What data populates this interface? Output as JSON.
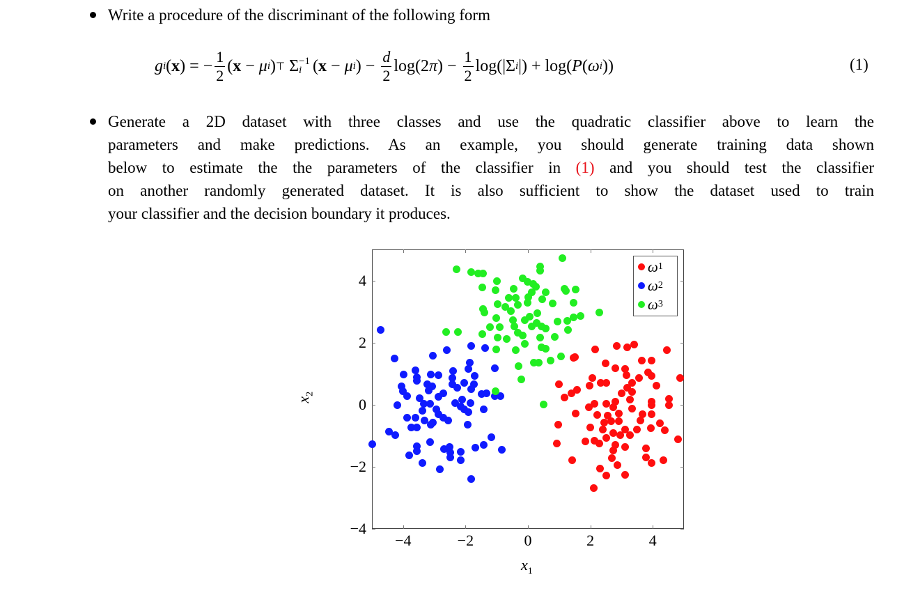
{
  "bullet1": {
    "text": "Write a procedure of the discriminant of the following form"
  },
  "equation": {
    "tokens": [
      {
        "t": "it",
        "v": "g"
      },
      {
        "t": "sub",
        "v": "i"
      },
      {
        "t": "txt",
        "v": "("
      },
      {
        "t": "bf",
        "v": "x"
      },
      {
        "t": "txt",
        "v": ") = −"
      },
      {
        "t": "frac",
        "n": "1",
        "d": "2"
      },
      {
        "t": "txt",
        "v": "("
      },
      {
        "t": "bf",
        "v": "x"
      },
      {
        "t": "txt",
        "v": " − "
      },
      {
        "t": "it",
        "v": "μ"
      },
      {
        "t": "sub",
        "v": "i"
      },
      {
        "t": "txt",
        "v": ")"
      },
      {
        "t": "sup",
        "v": "⊤"
      },
      {
        "t": "txt",
        "v": " Σ"
      },
      {
        "t": "subsup",
        "sub": "i",
        "sup": "−1"
      },
      {
        "t": "txt",
        "v": "("
      },
      {
        "t": "bf",
        "v": "x"
      },
      {
        "t": "txt",
        "v": " − "
      },
      {
        "t": "it",
        "v": "μ"
      },
      {
        "t": "sub",
        "v": "i"
      },
      {
        "t": "txt",
        "v": ") − "
      },
      {
        "t": "frac",
        "n": "d",
        "d": "2",
        "ni": true
      },
      {
        "t": "txt",
        "v": "log(2"
      },
      {
        "t": "it",
        "v": "π"
      },
      {
        "t": "txt",
        "v": ") − "
      },
      {
        "t": "frac",
        "n": "1",
        "d": "2"
      },
      {
        "t": "txt",
        "v": "log(|Σ"
      },
      {
        "t": "sub",
        "v": "i"
      },
      {
        "t": "txt",
        "v": "|) + log("
      },
      {
        "t": "it",
        "v": "P"
      },
      {
        "t": "txt",
        "v": "("
      },
      {
        "t": "it",
        "v": "ω"
      },
      {
        "t": "sub",
        "v": "i"
      },
      {
        "t": "txt",
        "v": "))"
      }
    ],
    "number": "(1)"
  },
  "bullet2": {
    "lines": [
      "Generate a 2D dataset with three classes and use the quadratic classifier above to learn the",
      "parameters and make predictions. As an example, you should generate training data shown",
      {
        "before": "below to estimate the the parameters of the classifier in",
        "ref": "(1)",
        "after": "and you should test the classifier"
      },
      "on another randomly generated dataset. It is also sufficient to show the dataset used to train",
      "your classifier and the decision boundary it produces."
    ]
  },
  "chart_data": {
    "type": "scatter",
    "xlabel": "x1",
    "ylabel": "x2",
    "xlim": [
      -5,
      5
    ],
    "ylim": [
      -4,
      5
    ],
    "xticks": [
      -4,
      -2,
      0,
      2,
      4
    ],
    "yticks": [
      -4,
      -2,
      0,
      2,
      4
    ],
    "xtick_labels": [
      "−4",
      "−2",
      "0",
      "2",
      "4"
    ],
    "ytick_labels": [
      "−4",
      "−2",
      "0",
      "2",
      "4"
    ],
    "grid": false,
    "legend_position": "top-right",
    "series": [
      {
        "name": "ω1",
        "label_base": "ω",
        "label_sub": "1",
        "color": "#ff0e0e",
        "points": [
          [
            1.46,
            1.5
          ],
          [
            1.51,
            1.54
          ],
          [
            2.16,
            1.78
          ],
          [
            2.85,
            1.9
          ],
          [
            3.19,
            1.84
          ],
          [
            3.41,
            1.93
          ],
          [
            4.46,
            1.75
          ],
          [
            2.48,
            1.33
          ],
          [
            2.81,
            1.18
          ],
          [
            3.11,
            1.16
          ],
          [
            3.65,
            1.43
          ],
          [
            3.96,
            1.42
          ],
          [
            3.86,
            1.03
          ],
          [
            3.97,
            0.92
          ],
          [
            3.15,
            0.94
          ],
          [
            3.56,
            0.85
          ],
          [
            3.34,
            0.7
          ],
          [
            4.87,
            0.85
          ],
          [
            0.99,
            0.66
          ],
          [
            2.07,
            0.85
          ],
          [
            1.98,
            0.62
          ],
          [
            2.33,
            0.7
          ],
          [
            2.51,
            0.71
          ],
          [
            3.19,
            0.55
          ],
          [
            3.33,
            0.42
          ],
          [
            4.12,
            0.61
          ],
          [
            1.58,
            0.47
          ],
          [
            1.4,
            0.36
          ],
          [
            1.17,
            0.23
          ],
          [
            3.0,
            0.36
          ],
          [
            2.81,
            0.1
          ],
          [
            3.28,
            0.16
          ],
          [
            4.51,
            0.19
          ],
          [
            4.53,
            -0.01
          ],
          [
            3.97,
            0.1
          ],
          [
            3.97,
            -0.01
          ],
          [
            1.96,
            -0.09
          ],
          [
            2.14,
            0.02
          ],
          [
            2.51,
            0.02
          ],
          [
            2.74,
            -0.09
          ],
          [
            3.34,
            -0.13
          ],
          [
            1.53,
            -0.28
          ],
          [
            2.21,
            -0.34
          ],
          [
            2.55,
            -0.35
          ],
          [
            2.92,
            -0.28
          ],
          [
            3.67,
            -0.31
          ],
          [
            3.97,
            -0.31
          ],
          [
            2.44,
            -0.58
          ],
          [
            2.66,
            -0.54
          ],
          [
            2.92,
            -0.54
          ],
          [
            3.6,
            -0.5
          ],
          [
            4.23,
            -0.59
          ],
          [
            0.96,
            -0.64
          ],
          [
            2.0,
            -0.73
          ],
          [
            2.4,
            -0.8
          ],
          [
            3.11,
            -0.8
          ],
          [
            3.49,
            -0.8
          ],
          [
            3.93,
            -0.75
          ],
          [
            4.38,
            -0.82
          ],
          [
            2.74,
            -0.91
          ],
          [
            2.96,
            -0.99
          ],
          [
            3.26,
            -0.99
          ],
          [
            2.51,
            -1.06
          ],
          [
            1.84,
            -1.19
          ],
          [
            2.14,
            -1.16
          ],
          [
            2.28,
            -1.24
          ],
          [
            4.81,
            -1.12
          ],
          [
            0.93,
            -1.25
          ],
          [
            2.81,
            -1.29
          ],
          [
            3.11,
            -1.36
          ],
          [
            3.78,
            -1.4
          ],
          [
            2.74,
            -1.48
          ],
          [
            3.78,
            -1.69
          ],
          [
            3.97,
            -1.89
          ],
          [
            4.34,
            -1.79
          ],
          [
            2.7,
            -1.72
          ],
          [
            1.41,
            -1.8
          ],
          [
            2.87,
            -1.95
          ],
          [
            2.31,
            -2.06
          ],
          [
            2.52,
            -2.28
          ],
          [
            3.11,
            -2.26
          ],
          [
            2.1,
            -2.69
          ]
        ]
      },
      {
        "name": "ω2",
        "label_base": "ω",
        "label_sub": "2",
        "color": "#0f1bff",
        "points": [
          [
            -4.72,
            2.4
          ],
          [
            -4.28,
            1.48
          ],
          [
            -3.04,
            1.58
          ],
          [
            -2.6,
            1.75
          ],
          [
            -1.81,
            1.9
          ],
          [
            -1.37,
            1.82
          ],
          [
            -1.87,
            1.36
          ],
          [
            -1.9,
            1.16
          ],
          [
            -1.07,
            1.18
          ],
          [
            -3.99,
            0.97
          ],
          [
            -3.6,
            1.11
          ],
          [
            -3.57,
            0.88
          ],
          [
            -3.57,
            0.77
          ],
          [
            -3.12,
            0.98
          ],
          [
            -2.86,
            0.94
          ],
          [
            -2.41,
            1.09
          ],
          [
            -2.43,
            0.85
          ],
          [
            -2.43,
            0.66
          ],
          [
            -2.04,
            0.7
          ],
          [
            -1.7,
            0.92
          ],
          [
            -1.74,
            0.66
          ],
          [
            -1.81,
            0.51
          ],
          [
            -2.26,
            0.55
          ],
          [
            -3.23,
            0.66
          ],
          [
            -3.08,
            0.58
          ],
          [
            -4.05,
            0.58
          ],
          [
            -4.01,
            0.43
          ],
          [
            -3.88,
            0.28
          ],
          [
            -3.47,
            0.21
          ],
          [
            -2.86,
            0.25
          ],
          [
            -2.71,
            0.36
          ],
          [
            -3.19,
            0.46
          ],
          [
            -1.48,
            0.34
          ],
          [
            -1.33,
            0.36
          ],
          [
            -1.07,
            0.28
          ],
          [
            -0.88,
            0.28
          ],
          [
            -4.18,
            -0.01
          ],
          [
            -3.34,
            0.02
          ],
          [
            -3.14,
            0.02
          ],
          [
            -2.34,
            0.06
          ],
          [
            -2.11,
            0.17
          ],
          [
            -2.15,
            -0.05
          ],
          [
            -1.85,
            0.06
          ],
          [
            -2.04,
            -0.16
          ],
          [
            -1.9,
            -0.24
          ],
          [
            -1.42,
            -0.16
          ],
          [
            -3.38,
            -0.2
          ],
          [
            -2.93,
            -0.14
          ],
          [
            -2.86,
            -0.31
          ],
          [
            -3.87,
            -0.43
          ],
          [
            -3.6,
            -0.43
          ],
          [
            -3.31,
            -0.5
          ],
          [
            -3.04,
            -0.58
          ],
          [
            -2.71,
            -0.43
          ],
          [
            -2.56,
            -0.52
          ],
          [
            -3.75,
            -0.73
          ],
          [
            -3.57,
            -0.73
          ],
          [
            -3.12,
            -0.65
          ],
          [
            -1.93,
            -0.65
          ],
          [
            -4.46,
            -0.86
          ],
          [
            -4.26,
            -0.99
          ],
          [
            -4.99,
            -1.27
          ],
          [
            -3.14,
            -1.2
          ],
          [
            -3.57,
            -1.34
          ],
          [
            -3.57,
            -1.5
          ],
          [
            -3.81,
            -1.64
          ],
          [
            -3.38,
            -1.87
          ],
          [
            -2.82,
            -2.07
          ],
          [
            -2.69,
            -1.44
          ],
          [
            -2.52,
            -1.36
          ],
          [
            -2.49,
            -1.55
          ],
          [
            -2.5,
            -1.7
          ],
          [
            -2.15,
            -1.51
          ],
          [
            -2.15,
            -1.78
          ],
          [
            -1.68,
            -1.39
          ],
          [
            -1.42,
            -1.29
          ],
          [
            -1.18,
            -1.04
          ],
          [
            -0.84,
            -1.45
          ],
          [
            -1.83,
            -2.39
          ]
        ]
      },
      {
        "name": "ω3",
        "label_base": "ω",
        "label_sub": "3",
        "color": "#22ee22",
        "points": [
          [
            -2.28,
            4.35
          ],
          [
            -1.81,
            4.27
          ],
          [
            -1.6,
            4.22
          ],
          [
            -1.44,
            4.22
          ],
          [
            1.1,
            4.72
          ],
          [
            0.39,
            4.44
          ],
          [
            0.39,
            4.31
          ],
          [
            -1.47,
            3.77
          ],
          [
            -0.99,
            3.98
          ],
          [
            -1.03,
            3.69
          ],
          [
            -0.17,
            4.07
          ],
          [
            -0.02,
            3.96
          ],
          [
            0.16,
            3.88
          ],
          [
            0.26,
            3.81
          ],
          [
            -0.46,
            3.73
          ],
          [
            0.13,
            3.62
          ],
          [
            0.56,
            3.63
          ],
          [
            1.17,
            3.73
          ],
          [
            1.54,
            3.72
          ],
          [
            1.21,
            3.66
          ],
          [
            -0.62,
            3.45
          ],
          [
            -0.4,
            3.45
          ],
          [
            0.01,
            3.47
          ],
          [
            0.46,
            3.39
          ],
          [
            0.8,
            3.26
          ],
          [
            1.47,
            3.28
          ],
          [
            -1.44,
            3.09
          ],
          [
            -1.4,
            2.98
          ],
          [
            -0.96,
            3.23
          ],
          [
            -0.73,
            3.15
          ],
          [
            -0.32,
            3.21
          ],
          [
            -0.54,
            3.02
          ],
          [
            -0.02,
            3.28
          ],
          [
            0.31,
            2.94
          ],
          [
            2.29,
            2.96
          ],
          [
            1.69,
            2.85
          ],
          [
            1.47,
            2.81
          ],
          [
            1.25,
            2.7
          ],
          [
            0.95,
            2.68
          ],
          [
            -1.01,
            2.79
          ],
          [
            -0.49,
            2.72
          ],
          [
            -0.1,
            2.72
          ],
          [
            0.05,
            2.83
          ],
          [
            0.28,
            2.64
          ],
          [
            0.57,
            2.46
          ],
          [
            1.28,
            2.4
          ],
          [
            -1.22,
            2.49
          ],
          [
            -0.9,
            2.49
          ],
          [
            -0.43,
            2.53
          ],
          [
            0.13,
            2.53
          ],
          [
            0.43,
            2.51
          ],
          [
            -1.46,
            2.27
          ],
          [
            -0.96,
            2.16
          ],
          [
            -0.69,
            2.12
          ],
          [
            -0.32,
            2.31
          ],
          [
            -0.17,
            2.23
          ],
          [
            0.39,
            2.16
          ],
          [
            0.87,
            2.18
          ],
          [
            -0.1,
            1.97
          ],
          [
            -1.01,
            1.78
          ],
          [
            -0.4,
            1.76
          ],
          [
            0.43,
            1.84
          ],
          [
            0.57,
            1.81
          ],
          [
            -2.63,
            2.33
          ],
          [
            -2.24,
            2.33
          ],
          [
            0.2,
            1.36
          ],
          [
            0.35,
            1.36
          ],
          [
            0.72,
            1.41
          ],
          [
            1.06,
            1.56
          ],
          [
            -0.31,
            1.24
          ],
          [
            -0.21,
            0.81
          ],
          [
            -1.03,
            0.43
          ],
          [
            0.5,
            0.01
          ]
        ]
      }
    ]
  }
}
